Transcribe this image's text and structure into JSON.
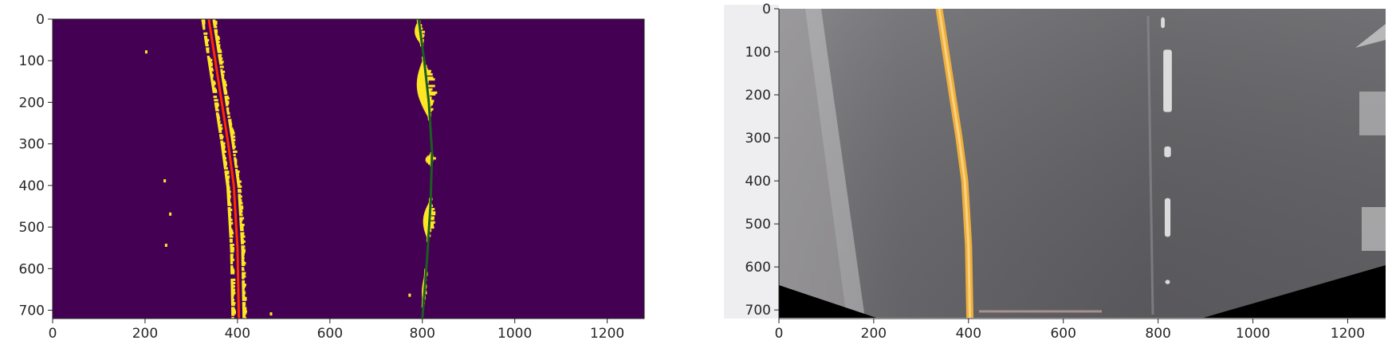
{
  "chart_data": [
    {
      "type": "image",
      "image_kind": "binary-threshold-lane-pixels",
      "colormap": "viridis",
      "background_color": "#440154",
      "pixel_color": "#fde725",
      "x_ticks": [
        0,
        200,
        400,
        600,
        800,
        1000,
        1200
      ],
      "y_ticks": [
        0,
        100,
        200,
        300,
        400,
        500,
        600,
        700
      ],
      "xlim": [
        0,
        1280
      ],
      "ylim": [
        720,
        0
      ],
      "series": [
        {
          "role": "left-lane-fit",
          "color": "#ff2a00",
          "x": [
            338,
            352,
            366,
            380,
            392,
            400,
            403
          ],
          "y": [
            0,
            100,
            200,
            300,
            400,
            550,
            720
          ]
        },
        {
          "role": "right-lane-fit",
          "color": "#1b5e20",
          "x": [
            792,
            804,
            814,
            821,
            818,
            810,
            800
          ],
          "y": [
            0,
            100,
            200,
            320,
            440,
            580,
            720
          ]
        }
      ]
    },
    {
      "type": "image",
      "image_kind": "birds-eye-road-view",
      "road_color": "#5f5e62",
      "left_lane_color": "#f3b23c",
      "dash_color": "#e9e9e9",
      "x_ticks": [
        0,
        200,
        400,
        600,
        800,
        1000,
        1200
      ],
      "y_ticks": [
        0,
        100,
        200,
        300,
        400,
        500,
        600,
        700
      ],
      "xlim": [
        0,
        1280
      ],
      "ylim": [
        720,
        0
      ],
      "series": [
        {
          "role": "left-lane-line",
          "color": "#f3b23c",
          "x": [
            338,
            352,
            366,
            380,
            392,
            400,
            403
          ],
          "y": [
            0,
            100,
            200,
            300,
            400,
            550,
            720
          ]
        }
      ]
    }
  ]
}
